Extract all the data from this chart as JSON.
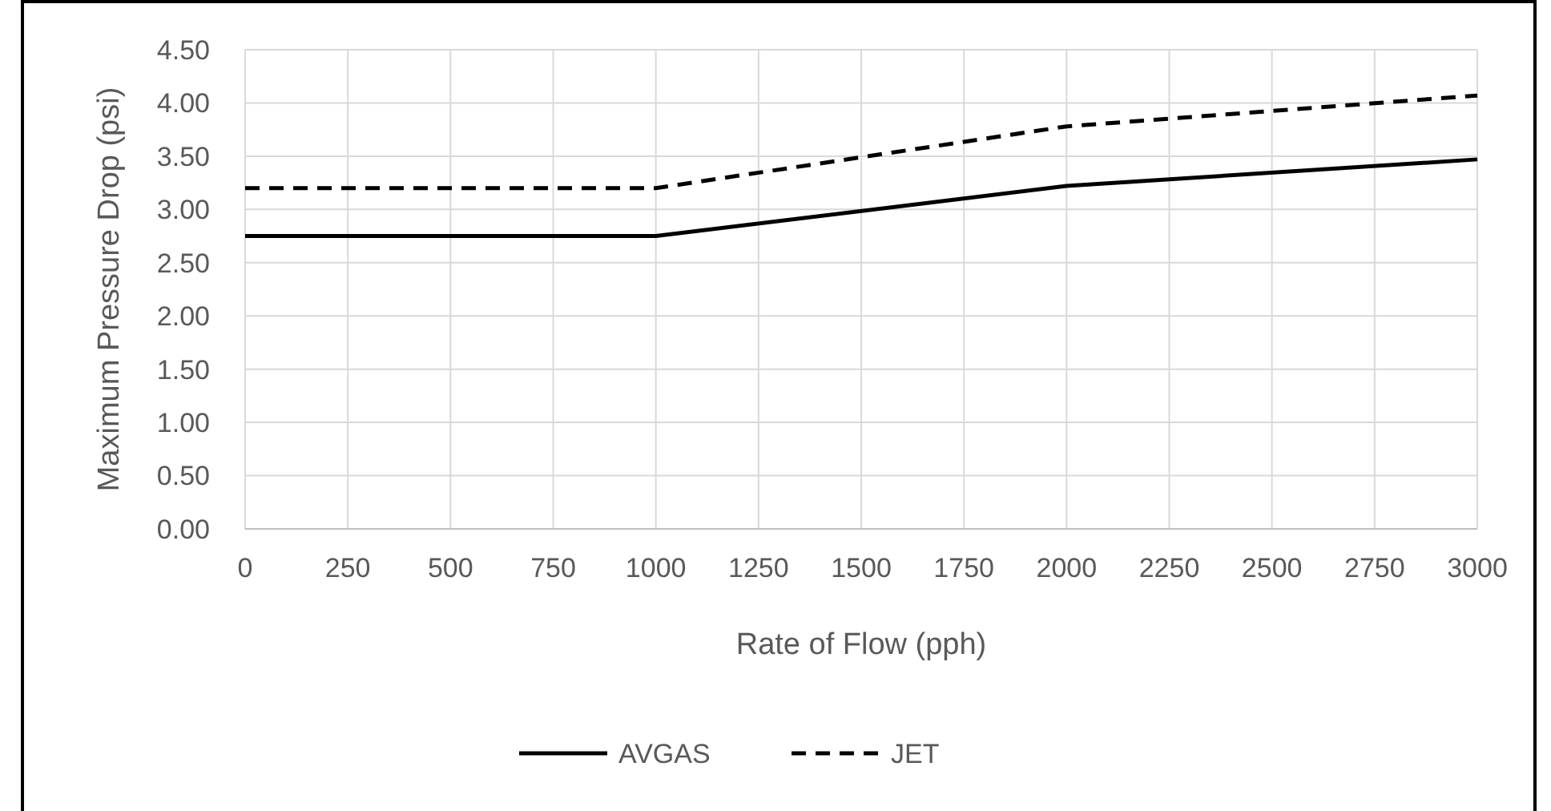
{
  "chart_data": {
    "type": "line",
    "xlabel": "Rate of Flow (pph)",
    "ylabel": "Maximum Pressure Drop (psi)",
    "x": [
      0,
      1000,
      2000,
      3000
    ],
    "series": [
      {
        "name": "AVGAS",
        "color": "#000000",
        "values": [
          2.75,
          2.75,
          3.22,
          3.47
        ],
        "line_style": "solid"
      },
      {
        "name": "JET",
        "color": "#000000",
        "values": [
          3.2,
          3.2,
          3.78,
          4.07
        ],
        "line_style": "dashed"
      }
    ],
    "xlim": [
      0,
      3000
    ],
    "xticks": [
      0,
      250,
      500,
      750,
      1000,
      1250,
      1500,
      1750,
      2000,
      2250,
      2500,
      2750,
      3000
    ],
    "ylim": [
      0,
      4.5
    ],
    "yticks": [
      {
        "value": 0,
        "label": "0.00"
      },
      {
        "value": 0.5,
        "label": "0.50"
      },
      {
        "value": 1,
        "label": "1.00"
      },
      {
        "value": 1.5,
        "label": "1.50"
      },
      {
        "value": 2,
        "label": "2.00"
      },
      {
        "value": 2.5,
        "label": "2.50"
      },
      {
        "value": 3,
        "label": "3.00"
      },
      {
        "value": 3.5,
        "label": "3.50"
      },
      {
        "value": 4,
        "label": "4.00"
      },
      {
        "value": 4.5,
        "label": "4.50"
      }
    ],
    "grid": true,
    "legend": "bottom",
    "marker": "none"
  }
}
